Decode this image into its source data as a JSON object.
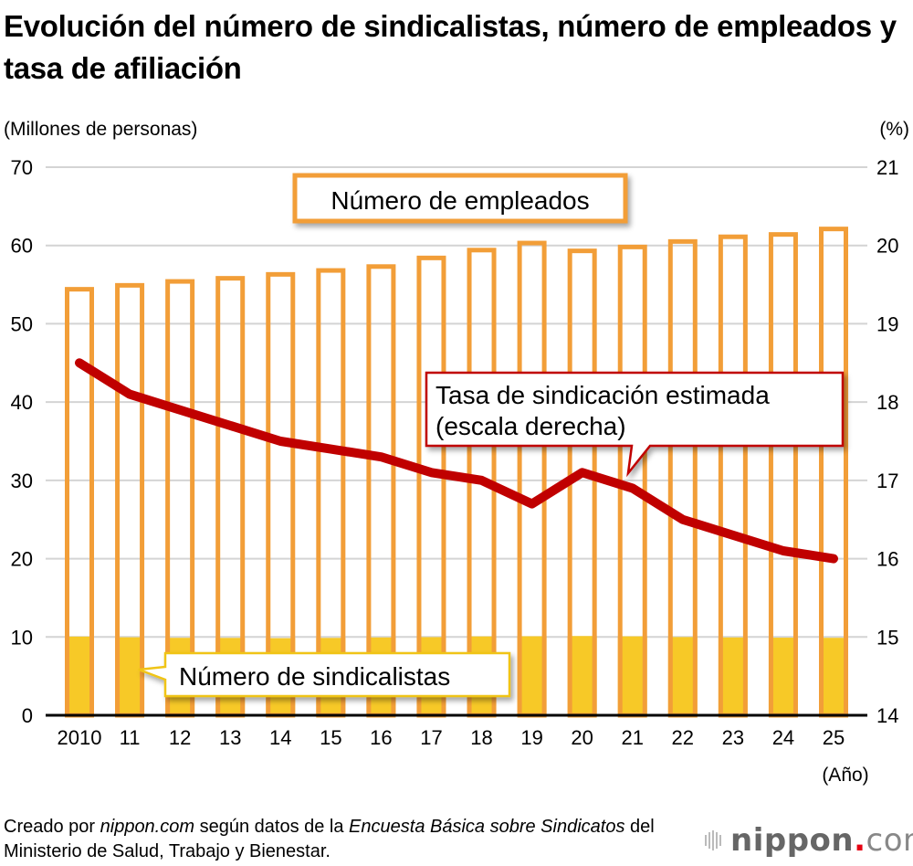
{
  "title": "Evolución del número de sindicalistas, número de empleados y tasa de afiliación",
  "footer": {
    "part1": "Creado por ",
    "part2": "nippon.com",
    "part3": " según datos de la ",
    "part4": "Encuesta Básica sobre Sindicatos",
    "part5": " del Ministerio de Salud, Trabajo y Bienestar."
  },
  "logo": {
    "name": "nippon",
    "dot": ".",
    "suffix": "com"
  },
  "chart_data": {
    "type": "bar+line",
    "left_axis_label": "(Millones de personas)",
    "right_axis_label": "(%)",
    "x_axis_unit": "(Año)",
    "categories": [
      "2010",
      "11",
      "12",
      "13",
      "14",
      "15",
      "16",
      "17",
      "18",
      "19",
      "20",
      "21",
      "22",
      "23",
      "24",
      "25"
    ],
    "left_ylim": [
      0,
      70
    ],
    "left_ticks": [
      "0",
      "10",
      "20",
      "30",
      "40",
      "50",
      "60",
      "70"
    ],
    "right_ylim": [
      14,
      21
    ],
    "right_ticks": [
      "14",
      "15",
      "16",
      "17",
      "18",
      "19",
      "20",
      "21"
    ],
    "grid": true,
    "series": [
      {
        "name": "Número de empleados",
        "type": "bar-outline",
        "axis": "left",
        "color": "#f29e38",
        "values": [
          54.7,
          55.2,
          55.7,
          56.1,
          56.6,
          57.1,
          57.6,
          58.7,
          59.7,
          60.6,
          59.6,
          60.1,
          60.8,
          61.4,
          61.7,
          62.4
        ]
      },
      {
        "name": "Número de sindicalistas",
        "type": "bar",
        "axis": "left",
        "color": "#f7c927",
        "values": [
          10.05,
          9.96,
          9.89,
          9.88,
          9.85,
          9.88,
          9.94,
          9.98,
          10.07,
          10.09,
          10.12,
          10.08,
          9.99,
          9.94,
          9.91,
          9.89
        ]
      },
      {
        "name": "Tasa de sindicación estimada (escala derecha)",
        "type": "line",
        "axis": "right",
        "color": "#c00000",
        "values": [
          18.5,
          18.1,
          17.9,
          17.7,
          17.5,
          17.4,
          17.3,
          17.1,
          17.0,
          16.7,
          17.1,
          16.9,
          16.5,
          16.3,
          16.1,
          16.0
        ]
      }
    ],
    "annotations": {
      "employees": "Número de empleados",
      "rate_line1": "Tasa de sindicación estimada",
      "rate_line2": "(escala derecha)",
      "members": "Número de sindicalistas"
    }
  }
}
